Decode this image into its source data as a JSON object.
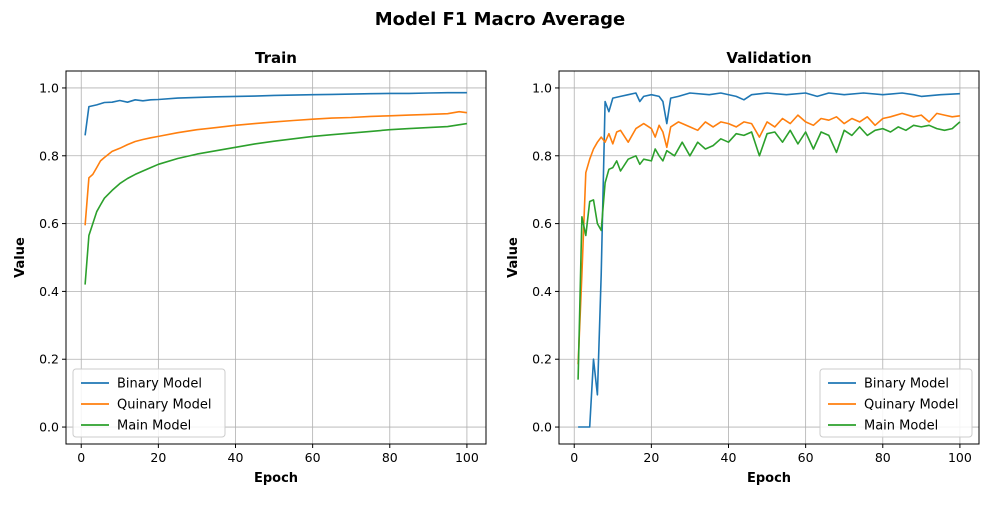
{
  "figure": {
    "title": "Model F1 Macro Average"
  },
  "colors": {
    "Binary Model": "#1f77b4",
    "Quinary Model": "#ff7f0e",
    "Main Model": "#2ca02c"
  },
  "chart_data": [
    {
      "type": "line",
      "title": "Train",
      "xlabel": "Epoch",
      "ylabel": "Value",
      "xlim": [
        1,
        100
      ],
      "ylim": [
        0.0,
        1.0
      ],
      "xticks": [
        0,
        20,
        40,
        60,
        80,
        100
      ],
      "yticks": [
        0.0,
        0.2,
        0.4,
        0.6,
        0.8,
        1.0
      ],
      "grid": true,
      "legend_loc": "lower-left",
      "series": [
        {
          "name": "Binary Model",
          "points": [
            [
              1,
              0.86
            ],
            [
              2,
              0.945
            ],
            [
              4,
              0.95
            ],
            [
              6,
              0.957
            ],
            [
              8,
              0.958
            ],
            [
              10,
              0.963
            ],
            [
              12,
              0.958
            ],
            [
              14,
              0.965
            ],
            [
              16,
              0.962
            ],
            [
              18,
              0.965
            ],
            [
              20,
              0.966
            ],
            [
              25,
              0.97
            ],
            [
              30,
              0.972
            ],
            [
              35,
              0.974
            ],
            [
              40,
              0.975
            ],
            [
              45,
              0.976
            ],
            [
              50,
              0.978
            ],
            [
              55,
              0.979
            ],
            [
              60,
              0.98
            ],
            [
              65,
              0.981
            ],
            [
              70,
              0.982
            ],
            [
              75,
              0.983
            ],
            [
              80,
              0.984
            ],
            [
              85,
              0.984
            ],
            [
              90,
              0.985
            ],
            [
              95,
              0.986
            ],
            [
              100,
              0.986
            ]
          ]
        },
        {
          "name": "Quinary Model",
          "points": [
            [
              1,
              0.595
            ],
            [
              2,
              0.735
            ],
            [
              3,
              0.745
            ],
            [
              4,
              0.765
            ],
            [
              5,
              0.785
            ],
            [
              6,
              0.795
            ],
            [
              8,
              0.813
            ],
            [
              10,
              0.822
            ],
            [
              12,
              0.833
            ],
            [
              14,
              0.842
            ],
            [
              16,
              0.848
            ],
            [
              18,
              0.853
            ],
            [
              20,
              0.857
            ],
            [
              25,
              0.868
            ],
            [
              30,
              0.877
            ],
            [
              35,
              0.883
            ],
            [
              40,
              0.89
            ],
            [
              45,
              0.895
            ],
            [
              50,
              0.9
            ],
            [
              55,
              0.904
            ],
            [
              60,
              0.908
            ],
            [
              65,
              0.911
            ],
            [
              70,
              0.913
            ],
            [
              75,
              0.916
            ],
            [
              80,
              0.918
            ],
            [
              85,
              0.92
            ],
            [
              90,
              0.922
            ],
            [
              95,
              0.924
            ],
            [
              98,
              0.93
            ],
            [
              100,
              0.927
            ]
          ]
        },
        {
          "name": "Main Model",
          "points": [
            [
              1,
              0.42
            ],
            [
              2,
              0.565
            ],
            [
              3,
              0.6
            ],
            [
              4,
              0.635
            ],
            [
              5,
              0.655
            ],
            [
              6,
              0.675
            ],
            [
              8,
              0.698
            ],
            [
              10,
              0.718
            ],
            [
              12,
              0.733
            ],
            [
              14,
              0.745
            ],
            [
              16,
              0.755
            ],
            [
              18,
              0.765
            ],
            [
              20,
              0.775
            ],
            [
              25,
              0.792
            ],
            [
              30,
              0.805
            ],
            [
              35,
              0.815
            ],
            [
              40,
              0.825
            ],
            [
              45,
              0.835
            ],
            [
              50,
              0.843
            ],
            [
              55,
              0.85
            ],
            [
              60,
              0.857
            ],
            [
              65,
              0.862
            ],
            [
              70,
              0.867
            ],
            [
              75,
              0.872
            ],
            [
              80,
              0.877
            ],
            [
              85,
              0.88
            ],
            [
              90,
              0.883
            ],
            [
              95,
              0.886
            ],
            [
              100,
              0.895
            ]
          ]
        }
      ]
    },
    {
      "type": "line",
      "title": "Validation",
      "xlabel": "Epoch",
      "ylabel": "Value",
      "xlim": [
        1,
        100
      ],
      "ylim": [
        0.0,
        1.0
      ],
      "xticks": [
        0,
        20,
        40,
        60,
        80,
        100
      ],
      "yticks": [
        0.0,
        0.2,
        0.4,
        0.6,
        0.8,
        1.0
      ],
      "grid": true,
      "legend_loc": "lower-right",
      "series": [
        {
          "name": "Binary Model",
          "points": [
            [
              1,
              0.0
            ],
            [
              2,
              0.0
            ],
            [
              3,
              0.0
            ],
            [
              4,
              0.0
            ],
            [
              5,
              0.2
            ],
            [
              6,
              0.095
            ],
            [
              7,
              0.45
            ],
            [
              8,
              0.96
            ],
            [
              9,
              0.93
            ],
            [
              10,
              0.97
            ],
            [
              12,
              0.975
            ],
            [
              14,
              0.98
            ],
            [
              16,
              0.985
            ],
            [
              17,
              0.96
            ],
            [
              18,
              0.975
            ],
            [
              20,
              0.98
            ],
            [
              22,
              0.975
            ],
            [
              23,
              0.96
            ],
            [
              24,
              0.895
            ],
            [
              25,
              0.97
            ],
            [
              27,
              0.975
            ],
            [
              30,
              0.985
            ],
            [
              35,
              0.98
            ],
            [
              38,
              0.985
            ],
            [
              42,
              0.975
            ],
            [
              44,
              0.965
            ],
            [
              46,
              0.98
            ],
            [
              50,
              0.985
            ],
            [
              55,
              0.98
            ],
            [
              60,
              0.985
            ],
            [
              63,
              0.975
            ],
            [
              66,
              0.985
            ],
            [
              70,
              0.98
            ],
            [
              75,
              0.985
            ],
            [
              80,
              0.98
            ],
            [
              85,
              0.985
            ],
            [
              88,
              0.98
            ],
            [
              90,
              0.975
            ],
            [
              95,
              0.98
            ],
            [
              100,
              0.983
            ]
          ]
        },
        {
          "name": "Quinary Model",
          "points": [
            [
              1,
              0.185
            ],
            [
              2,
              0.45
            ],
            [
              3,
              0.75
            ],
            [
              4,
              0.79
            ],
            [
              5,
              0.82
            ],
            [
              6,
              0.84
            ],
            [
              7,
              0.855
            ],
            [
              8,
              0.84
            ],
            [
              9,
              0.865
            ],
            [
              10,
              0.835
            ],
            [
              11,
              0.87
            ],
            [
              12,
              0.875
            ],
            [
              14,
              0.84
            ],
            [
              16,
              0.88
            ],
            [
              18,
              0.895
            ],
            [
              20,
              0.88
            ],
            [
              21,
              0.855
            ],
            [
              22,
              0.89
            ],
            [
              23,
              0.87
            ],
            [
              24,
              0.825
            ],
            [
              25,
              0.885
            ],
            [
              27,
              0.9
            ],
            [
              30,
              0.885
            ],
            [
              32,
              0.875
            ],
            [
              34,
              0.9
            ],
            [
              36,
              0.885
            ],
            [
              38,
              0.9
            ],
            [
              40,
              0.895
            ],
            [
              42,
              0.885
            ],
            [
              44,
              0.9
            ],
            [
              46,
              0.895
            ],
            [
              48,
              0.855
            ],
            [
              50,
              0.9
            ],
            [
              52,
              0.885
            ],
            [
              54,
              0.91
            ],
            [
              56,
              0.895
            ],
            [
              58,
              0.92
            ],
            [
              60,
              0.9
            ],
            [
              62,
              0.89
            ],
            [
              64,
              0.91
            ],
            [
              66,
              0.905
            ],
            [
              68,
              0.915
            ],
            [
              70,
              0.895
            ],
            [
              72,
              0.91
            ],
            [
              74,
              0.9
            ],
            [
              76,
              0.915
            ],
            [
              78,
              0.89
            ],
            [
              80,
              0.91
            ],
            [
              82,
              0.915
            ],
            [
              85,
              0.925
            ],
            [
              88,
              0.915
            ],
            [
              90,
              0.92
            ],
            [
              92,
              0.9
            ],
            [
              94,
              0.925
            ],
            [
              96,
              0.92
            ],
            [
              98,
              0.915
            ],
            [
              100,
              0.918
            ]
          ]
        },
        {
          "name": "Main Model",
          "points": [
            [
              1,
              0.14
            ],
            [
              2,
              0.62
            ],
            [
              3,
              0.565
            ],
            [
              4,
              0.665
            ],
            [
              5,
              0.67
            ],
            [
              6,
              0.6
            ],
            [
              7,
              0.58
            ],
            [
              8,
              0.72
            ],
            [
              9,
              0.76
            ],
            [
              10,
              0.765
            ],
            [
              11,
              0.785
            ],
            [
              12,
              0.755
            ],
            [
              14,
              0.79
            ],
            [
              16,
              0.8
            ],
            [
              17,
              0.775
            ],
            [
              18,
              0.79
            ],
            [
              20,
              0.785
            ],
            [
              21,
              0.82
            ],
            [
              22,
              0.8
            ],
            [
              23,
              0.785
            ],
            [
              24,
              0.815
            ],
            [
              26,
              0.8
            ],
            [
              28,
              0.84
            ],
            [
              30,
              0.8
            ],
            [
              32,
              0.84
            ],
            [
              34,
              0.82
            ],
            [
              36,
              0.83
            ],
            [
              38,
              0.85
            ],
            [
              40,
              0.84
            ],
            [
              42,
              0.865
            ],
            [
              44,
              0.86
            ],
            [
              46,
              0.87
            ],
            [
              48,
              0.8
            ],
            [
              50,
              0.865
            ],
            [
              52,
              0.87
            ],
            [
              54,
              0.84
            ],
            [
              56,
              0.875
            ],
            [
              58,
              0.835
            ],
            [
              60,
              0.87
            ],
            [
              62,
              0.82
            ],
            [
              64,
              0.87
            ],
            [
              66,
              0.86
            ],
            [
              68,
              0.81
            ],
            [
              70,
              0.875
            ],
            [
              72,
              0.86
            ],
            [
              74,
              0.885
            ],
            [
              76,
              0.86
            ],
            [
              78,
              0.875
            ],
            [
              80,
              0.88
            ],
            [
              82,
              0.87
            ],
            [
              84,
              0.885
            ],
            [
              86,
              0.875
            ],
            [
              88,
              0.89
            ],
            [
              90,
              0.885
            ],
            [
              92,
              0.89
            ],
            [
              94,
              0.88
            ],
            [
              96,
              0.875
            ],
            [
              98,
              0.88
            ],
            [
              100,
              0.9
            ]
          ]
        }
      ]
    }
  ]
}
